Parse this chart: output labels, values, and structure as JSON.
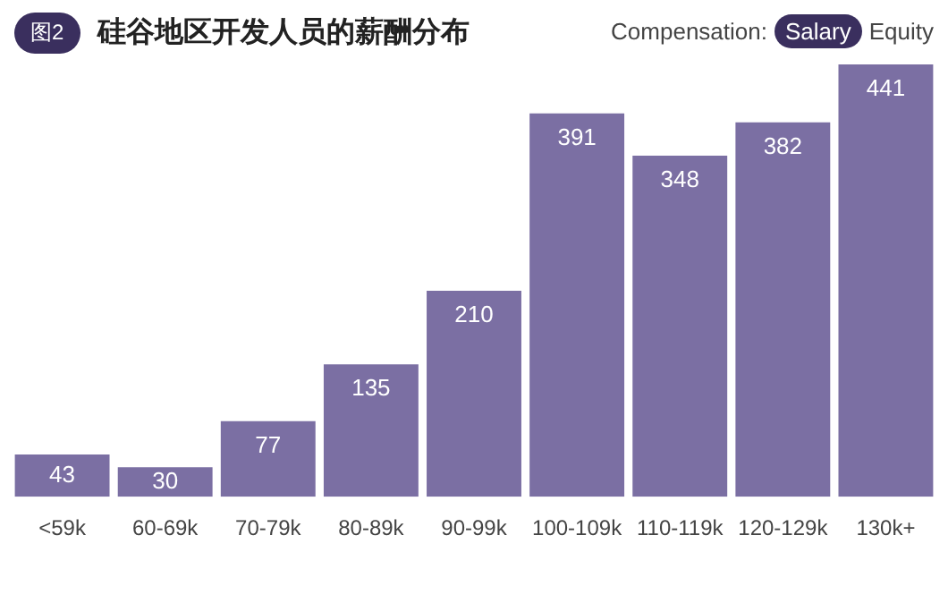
{
  "chart_data": {
    "type": "bar",
    "title": "硅谷地区开发人员的薪酬分布",
    "categories": [
      "<59k",
      "60-69k",
      "70-79k",
      "80-89k",
      "90-99k",
      "100-109k",
      "110-119k",
      "120-129k",
      "130k+"
    ],
    "values": [
      43,
      30,
      77,
      135,
      210,
      391,
      348,
      382,
      441
    ],
    "color": "#7b6fa3",
    "data_labels": true,
    "annotations": [
      "图2",
      "Compensation:",
      "Salary",
      "Equity"
    ]
  }
}
